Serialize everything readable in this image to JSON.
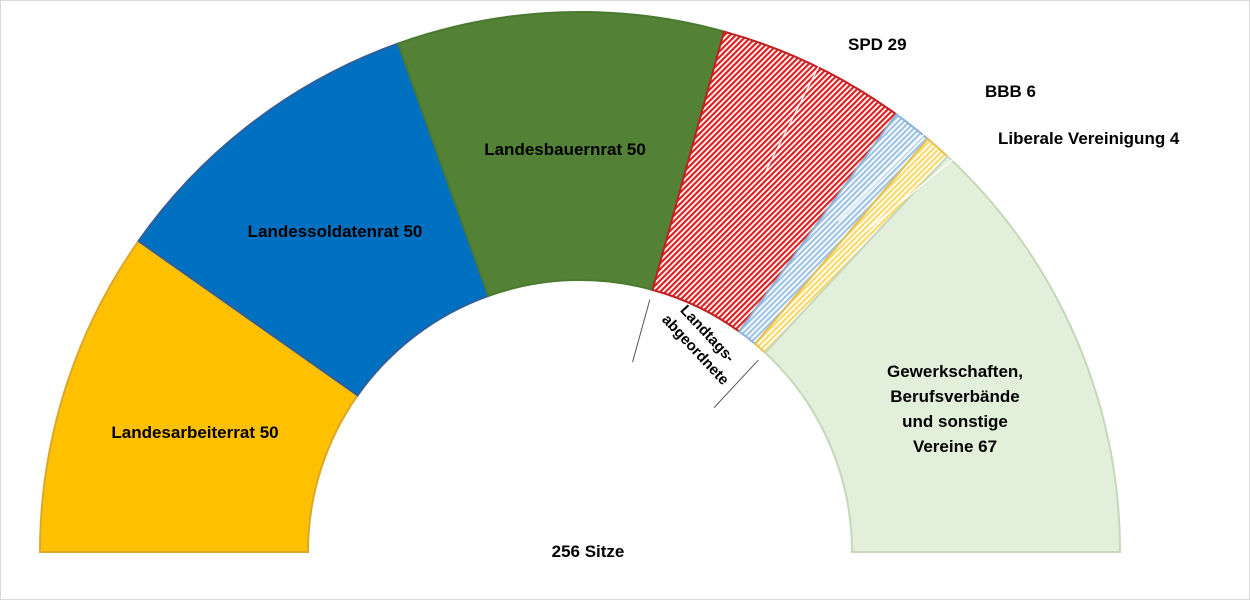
{
  "chart_data": {
    "type": "pie",
    "variant": "parliament-half-donut",
    "total_label": "256 Sitze",
    "total": 256,
    "group_label_lines": [
      "Landtags-",
      "abgeordnete"
    ],
    "slices": [
      {
        "label": "Landesarbeiterrat 50",
        "value": 50,
        "color": "#ffc000",
        "stroke": "#dca82a",
        "pattern": "solid"
      },
      {
        "label": "Landessoldatenrat 50",
        "value": 50,
        "color": "#0070c0",
        "stroke": "#2f5f9a",
        "pattern": "solid"
      },
      {
        "label": "Landesbauernrat 50",
        "value": 50,
        "color": "#538135",
        "stroke": "#4a7a30",
        "pattern": "solid"
      },
      {
        "label": "SPD 29",
        "value": 29,
        "color": "#e02020",
        "stroke": "#c02020",
        "pattern": "hatched"
      },
      {
        "label": "BBB 6",
        "value": 6,
        "color": "#9dc3e6",
        "stroke": "#8fb3d6",
        "pattern": "hatched"
      },
      {
        "label": "Liberale Vereinigung 4",
        "value": 4,
        "color": "#ffd966",
        "stroke": "#e3c158",
        "pattern": "hatched"
      },
      {
        "label_lines": [
          "Gewerkschaften,",
          "Berufsverbände",
          "und sonstige",
          "Vereine 67"
        ],
        "value": 67,
        "color": "#e2efda",
        "stroke": "#c5d8bb",
        "pattern": "solid"
      }
    ]
  }
}
